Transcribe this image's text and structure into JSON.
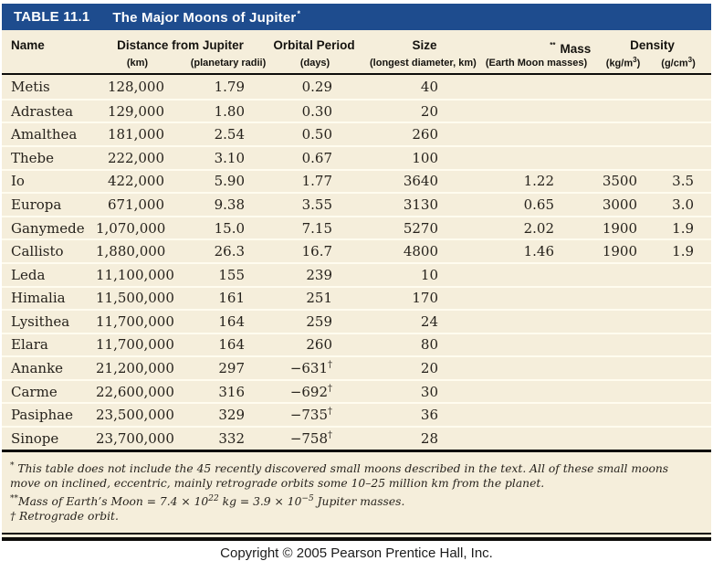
{
  "page": {
    "copyright": "Copyright © 2005 Pearson Prentice Hall, Inc."
  },
  "table": {
    "number": "TABLE 11.1",
    "title": "The Major Moons of Jupiter",
    "title_marker": "*",
    "dagger": "†",
    "colors": {
      "header_bar": "#1e4c8e",
      "table_bg": "#f5eedb",
      "rule": "#0e0d0b",
      "row_separator": "#fffcef"
    },
    "headers": {
      "name": "Name",
      "distance_group": "Distance from Jupiter",
      "distance_km": "(km)",
      "distance_radii": "(planetary radii)",
      "orbital_period": "Orbital Period",
      "orbital_period_sub": "(days)",
      "size": "Size",
      "size_sub": "(longest diameter, km)",
      "mass": "Mass",
      "mass_marker": "**",
      "mass_sub": "(Earth Moon masses)",
      "density_group": "Density",
      "density_kg": [
        {
          "v": "(kg/m"
        },
        {
          "v": "3",
          "sup": true
        },
        {
          "v": ")"
        }
      ],
      "density_g": [
        {
          "v": "(g/cm"
        },
        {
          "v": "3",
          "sup": true
        },
        {
          "v": ")"
        }
      ]
    },
    "rows": [
      {
        "name": "Metis",
        "distance_km": "128,000",
        "planetary_radii": "1.79",
        "period_days": "0.29",
        "retrograde": false,
        "size_km": "40",
        "mass": "",
        "density_kg_m3": "",
        "density_g_cm3": ""
      },
      {
        "name": "Adrastea",
        "distance_km": "129,000",
        "planetary_radii": "1.80",
        "period_days": "0.30",
        "retrograde": false,
        "size_km": "20",
        "mass": "",
        "density_kg_m3": "",
        "density_g_cm3": ""
      },
      {
        "name": "Amalthea",
        "distance_km": "181,000",
        "planetary_radii": "2.54",
        "period_days": "0.50",
        "retrograde": false,
        "size_km": "260",
        "mass": "",
        "density_kg_m3": "",
        "density_g_cm3": ""
      },
      {
        "name": "Thebe",
        "distance_km": "222,000",
        "planetary_radii": "3.10",
        "period_days": "0.67",
        "retrograde": false,
        "size_km": "100",
        "mass": "",
        "density_kg_m3": "",
        "density_g_cm3": ""
      },
      {
        "name": "Io",
        "distance_km": "422,000",
        "planetary_radii": "5.90",
        "period_days": "1.77",
        "retrograde": false,
        "size_km": "3640",
        "mass": "1.22",
        "density_kg_m3": "3500",
        "density_g_cm3": "3.5"
      },
      {
        "name": "Europa",
        "distance_km": "671,000",
        "planetary_radii": "9.38",
        "period_days": "3.55",
        "retrograde": false,
        "size_km": "3130",
        "mass": "0.65",
        "density_kg_m3": "3000",
        "density_g_cm3": "3.0"
      },
      {
        "name": "Ganymede",
        "distance_km": "1,070,000",
        "planetary_radii": "15.0",
        "period_days": "7.15",
        "retrograde": false,
        "size_km": "5270",
        "mass": "2.02",
        "density_kg_m3": "1900",
        "density_g_cm3": "1.9"
      },
      {
        "name": "Callisto",
        "distance_km": "1,880,000",
        "planetary_radii": "26.3",
        "period_days": "16.7",
        "retrograde": false,
        "size_km": "4800",
        "mass": "1.46",
        "density_kg_m3": "1900",
        "density_g_cm3": "1.9"
      },
      {
        "name": "Leda",
        "distance_km": "11,100,000",
        "planetary_radii": "155",
        "period_days": "239",
        "retrograde": false,
        "size_km": "10",
        "mass": "",
        "density_kg_m3": "",
        "density_g_cm3": ""
      },
      {
        "name": "Himalia",
        "distance_km": "11,500,000",
        "planetary_radii": "161",
        "period_days": "251",
        "retrograde": false,
        "size_km": "170",
        "mass": "",
        "density_kg_m3": "",
        "density_g_cm3": ""
      },
      {
        "name": "Lysithea",
        "distance_km": "11,700,000",
        "planetary_radii": "164",
        "period_days": "259",
        "retrograde": false,
        "size_km": "24",
        "mass": "",
        "density_kg_m3": "",
        "density_g_cm3": ""
      },
      {
        "name": "Elara",
        "distance_km": "11,700,000",
        "planetary_radii": "164",
        "period_days": "260",
        "retrograde": false,
        "size_km": "80",
        "mass": "",
        "density_kg_m3": "",
        "density_g_cm3": ""
      },
      {
        "name": "Ananke",
        "distance_km": "21,200,000",
        "planetary_radii": "297",
        "period_days": "−631",
        "retrograde": true,
        "size_km": "20",
        "mass": "",
        "density_kg_m3": "",
        "density_g_cm3": ""
      },
      {
        "name": "Carme",
        "distance_km": "22,600,000",
        "planetary_radii": "316",
        "period_days": "−692",
        "retrograde": true,
        "size_km": "30",
        "mass": "",
        "density_kg_m3": "",
        "density_g_cm3": ""
      },
      {
        "name": "Pasiphae",
        "distance_km": "23,500,000",
        "planetary_radii": "329",
        "period_days": "−735",
        "retrograde": true,
        "size_km": "36",
        "mass": "",
        "density_kg_m3": "",
        "density_g_cm3": ""
      },
      {
        "name": "Sinope",
        "distance_km": "23,700,000",
        "planetary_radii": "332",
        "period_days": "−758",
        "retrograde": true,
        "size_km": "28",
        "mass": "",
        "density_kg_m3": "",
        "density_g_cm3": ""
      }
    ],
    "footnotes": [
      [
        {
          "v": "*",
          "sup": true
        },
        {
          "v": " This table does not include the 45 recently discovered small moons described in the text. All of these small moons move on inclined, eccentric, mainly retrograde orbits some 10–25 million km from the planet."
        }
      ],
      [
        {
          "v": "**",
          "sup": true
        },
        {
          "v": "Mass of Earth’s Moon = 7.4 × 10"
        },
        {
          "v": "22",
          "sup": true
        },
        {
          "v": " kg = 3.9 × 10"
        },
        {
          "v": "−5",
          "sup": true
        },
        {
          "v": " Jupiter masses."
        }
      ],
      [
        {
          "v": "† Retrograde orbit."
        }
      ]
    ]
  }
}
